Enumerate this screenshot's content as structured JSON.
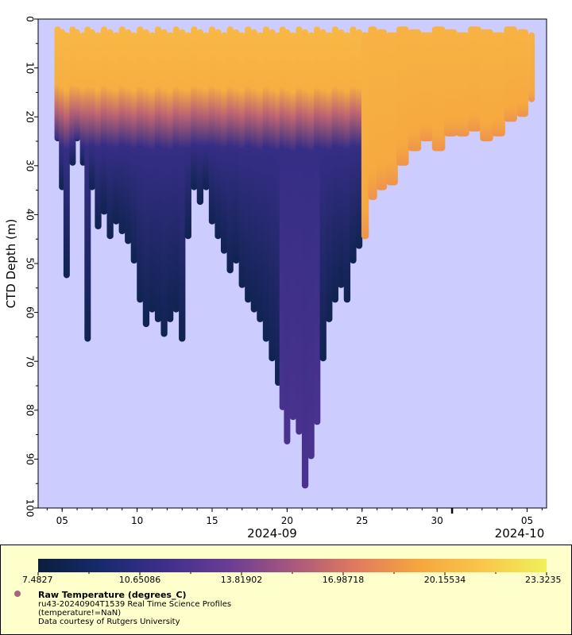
{
  "chart_data": {
    "type": "scatter",
    "subtype": "depth-time profile section colored by temperature",
    "ylabel": "CTD Depth (m)",
    "ylim": [
      100,
      0
    ],
    "y_ticks": [
      "0",
      "10",
      "20",
      "30",
      "40",
      "50",
      "60",
      "70",
      "80",
      "90",
      "100"
    ],
    "x_range_days": [
      3.4,
      37.3
    ],
    "x_ticks": [
      {
        "day": 5,
        "label": "05"
      },
      {
        "day": 10,
        "label": "10"
      },
      {
        "day": 15,
        "label": "15"
      },
      {
        "day": 20,
        "label": "20"
      },
      {
        "day": 25,
        "label": "25"
      },
      {
        "day": 30,
        "label": "30"
      },
      {
        "day": 36,
        "label": "05"
      }
    ],
    "month_labels": [
      {
        "day": 19.0,
        "label": "2024-09"
      },
      {
        "day": 35.5,
        "label": "2024-10"
      }
    ],
    "profiles_max_depth": [
      {
        "day": 4.7,
        "depth": 25
      },
      {
        "day": 5.0,
        "depth": 35
      },
      {
        "day": 5.3,
        "depth": 53
      },
      {
        "day": 5.7,
        "depth": 30
      },
      {
        "day": 6.0,
        "depth": 25
      },
      {
        "day": 6.4,
        "depth": 30
      },
      {
        "day": 6.7,
        "depth": 66
      },
      {
        "day": 7.0,
        "depth": 35
      },
      {
        "day": 7.4,
        "depth": 43
      },
      {
        "day": 7.8,
        "depth": 40
      },
      {
        "day": 8.2,
        "depth": 45
      },
      {
        "day": 8.6,
        "depth": 42
      },
      {
        "day": 9.0,
        "depth": 44
      },
      {
        "day": 9.4,
        "depth": 46
      },
      {
        "day": 9.8,
        "depth": 50
      },
      {
        "day": 10.2,
        "depth": 58
      },
      {
        "day": 10.6,
        "depth": 63
      },
      {
        "day": 11.0,
        "depth": 60
      },
      {
        "day": 11.4,
        "depth": 62
      },
      {
        "day": 11.8,
        "depth": 65
      },
      {
        "day": 12.2,
        "depth": 62
      },
      {
        "day": 12.6,
        "depth": 60
      },
      {
        "day": 13.0,
        "depth": 66
      },
      {
        "day": 13.4,
        "depth": 45
      },
      {
        "day": 13.8,
        "depth": 35
      },
      {
        "day": 14.2,
        "depth": 38
      },
      {
        "day": 14.6,
        "depth": 35
      },
      {
        "day": 15.0,
        "depth": 42
      },
      {
        "day": 15.4,
        "depth": 45
      },
      {
        "day": 15.8,
        "depth": 48
      },
      {
        "day": 16.2,
        "depth": 52
      },
      {
        "day": 16.6,
        "depth": 50
      },
      {
        "day": 17.0,
        "depth": 55
      },
      {
        "day": 17.4,
        "depth": 58
      },
      {
        "day": 17.8,
        "depth": 60
      },
      {
        "day": 18.2,
        "depth": 62
      },
      {
        "day": 18.6,
        "depth": 66
      },
      {
        "day": 19.0,
        "depth": 70
      },
      {
        "day": 19.4,
        "depth": 75
      },
      {
        "day": 19.7,
        "depth": 80
      },
      {
        "day": 20.0,
        "depth": 87
      },
      {
        "day": 20.4,
        "depth": 82
      },
      {
        "day": 20.8,
        "depth": 85
      },
      {
        "day": 21.2,
        "depth": 96
      },
      {
        "day": 21.6,
        "depth": 90
      },
      {
        "day": 22.0,
        "depth": 83
      },
      {
        "day": 22.4,
        "depth": 70
      },
      {
        "day": 22.8,
        "depth": 62
      },
      {
        "day": 23.2,
        "depth": 58
      },
      {
        "day": 23.6,
        "depth": 55
      },
      {
        "day": 24.0,
        "depth": 58
      },
      {
        "day": 24.4,
        "depth": 50
      },
      {
        "day": 24.8,
        "depth": 47
      },
      {
        "day": 25.2,
        "depth": 45
      },
      {
        "day": 25.7,
        "depth": 37
      },
      {
        "day": 26.3,
        "depth": 35
      },
      {
        "day": 27.0,
        "depth": 34
      },
      {
        "day": 27.7,
        "depth": 30
      },
      {
        "day": 28.5,
        "depth": 27
      },
      {
        "day": 29.3,
        "depth": 25
      },
      {
        "day": 30.1,
        "depth": 27
      },
      {
        "day": 30.9,
        "depth": 24
      },
      {
        "day": 31.7,
        "depth": 24
      },
      {
        "day": 32.5,
        "depth": 23
      },
      {
        "day": 33.3,
        "depth": 25
      },
      {
        "day": 34.1,
        "depth": 24
      },
      {
        "day": 34.9,
        "depth": 21
      },
      {
        "day": 35.7,
        "depth": 20
      },
      {
        "day": 36.3,
        "depth": 17
      }
    ],
    "color_scale": {
      "variable": "Raw Temperature (degrees_C)",
      "min": 7.4827,
      "max": 23.3235,
      "tick_labels": [
        "7.4827",
        "10.65086",
        "13.81902",
        "16.98718",
        "20.15534",
        "23.3235"
      ],
      "colors": [
        "#0b1e3d",
        "#172a6e",
        "#3e2f8c",
        "#6a3d94",
        "#a8577e",
        "#e07a5f",
        "#f6a63f",
        "#f9c74a",
        "#f0f05a"
      ]
    },
    "plot_background": "#ccccff"
  },
  "legend": {
    "title": "Raw Temperature (degrees_C)",
    "dataset": "ru43-20240904T1539 Real Time Science Profiles",
    "constraint": "(temperature!=NaN)",
    "credit": "Data courtesy of Rutgers University"
  }
}
